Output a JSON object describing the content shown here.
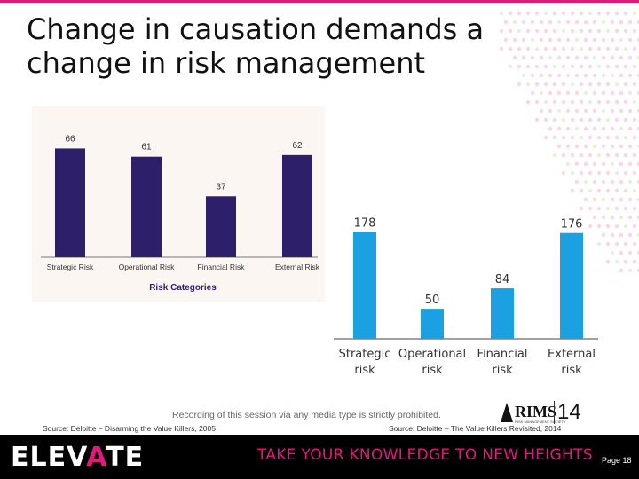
{
  "slide": {
    "title": "Change in causation demands a change in risk management",
    "notice": "Recording of this session via any media type is strictly prohibited.",
    "source_left": "Source: Deloitte – Disarming the Value Killers, 2005",
    "source_right": "Source: Deloitte – The Value Killers Revisited, 2014",
    "page_label": "Page 18",
    "accent_color": "#e0197d"
  },
  "footer": {
    "logo_prefix": "ELEV",
    "logo_accent": "A",
    "logo_suffix": "TE",
    "tagline": "TAKE YOUR KNOWLEDGE TO NEW HEIGHTS"
  },
  "rims_logo": {
    "name": "RIMS",
    "small": "RISK MANAGEMENT SOCIETY",
    "year": "14"
  },
  "chart_data": [
    {
      "type": "bar",
      "categories": [
        "Strategic Risk",
        "Operational Risk",
        "Financial Risk",
        "External Risk"
      ],
      "values": [
        66,
        61,
        37,
        62
      ],
      "xlabel": "Risk Categories",
      "ylabel": "",
      "ylim": [
        0,
        70
      ],
      "color": "#2e1f6b",
      "grid": false
    },
    {
      "type": "bar",
      "categories": [
        "Strategic risk",
        "Operational risk",
        "Financial risk",
        "External risk"
      ],
      "values": [
        178,
        50,
        84,
        176
      ],
      "xlabel": "",
      "ylabel": "",
      "ylim": [
        0,
        180
      ],
      "color": "#1ba1e2",
      "grid": false
    }
  ]
}
